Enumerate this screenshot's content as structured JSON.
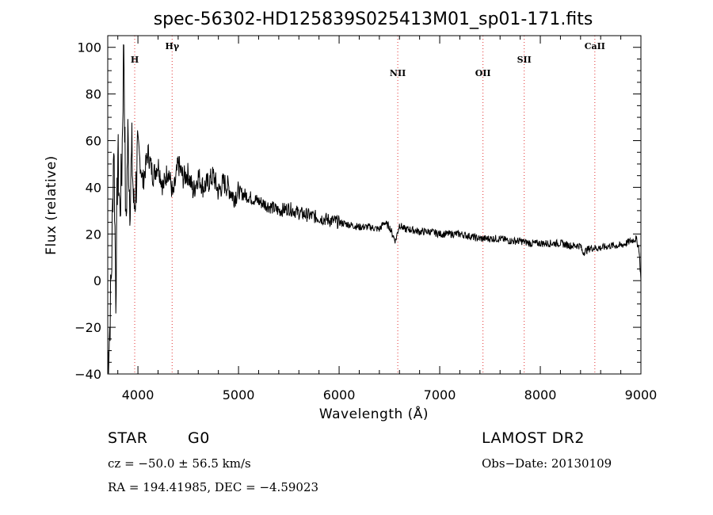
{
  "chart_data": {
    "type": "line",
    "title": "spec-56302-HD125839S025413M01_sp01-171.fits",
    "xlabel": "Wavelength (Å)",
    "ylabel": "Flux (relative)",
    "xlim": [
      3700,
      9000
    ],
    "ylim": [
      -40,
      105
    ],
    "x_ticks": [
      4000,
      5000,
      6000,
      7000,
      8000,
      9000
    ],
    "y_ticks": [
      -40,
      -20,
      0,
      20,
      40,
      60,
      80,
      100
    ],
    "grid": false,
    "series": [
      {
        "x": [
          3700,
          3720,
          3740,
          3760,
          3780,
          3800,
          3820,
          3840,
          3860,
          3880,
          3900,
          3920,
          3940,
          3960,
          3980,
          4000,
          4050,
          4100,
          4150,
          4200,
          4250,
          4300,
          4350,
          4400,
          4450,
          4500,
          4550,
          4600,
          4650,
          4700,
          4750,
          4800,
          4850,
          4900,
          4950,
          5000,
          5100,
          5200,
          5300,
          5400,
          5500,
          5600,
          5700,
          5800,
          5900,
          6000,
          6100,
          6200,
          6300,
          6400,
          6450,
          6500,
          6560,
          6600,
          6650,
          6700,
          6800,
          6900,
          7000,
          7100,
          7200,
          7300,
          7400,
          7500,
          7600,
          7700,
          7800,
          7900,
          8000,
          8100,
          8200,
          8300,
          8400,
          8420,
          8500,
          8600,
          8700,
          8800,
          8900,
          8950,
          8980,
          9000
        ],
        "y": [
          -35,
          -20,
          10,
          62,
          -5,
          55,
          30,
          48,
          105,
          20,
          62,
          35,
          55,
          30,
          40,
          58,
          42,
          55,
          45,
          50,
          40,
          48,
          36,
          50,
          44,
          46,
          38,
          45,
          40,
          42,
          45,
          38,
          42,
          40,
          36,
          38,
          36,
          34,
          32,
          30,
          31,
          29,
          28,
          27,
          26,
          25,
          24,
          23,
          23,
          22,
          25,
          23,
          17,
          24,
          22,
          22,
          21,
          21,
          20,
          20,
          20,
          19,
          18,
          18,
          18,
          17,
          17,
          16,
          16,
          16,
          16,
          15,
          15,
          12,
          14,
          14,
          15,
          15,
          17,
          18,
          14,
          0
        ]
      }
    ],
    "lines": [
      {
        "label": "H",
        "x": 3968
      },
      {
        "label": "Hγ",
        "x": 4340
      },
      {
        "label": "NII",
        "x": 6583
      },
      {
        "label": "OII",
        "x": 7430
      },
      {
        "label": "SII",
        "x": 7840
      },
      {
        "label": "CaII",
        "x": 8542
      }
    ],
    "line_color": "#e23030"
  },
  "info": {
    "class_label": "STAR",
    "subclass": "G0",
    "survey": "LAMOST DR2",
    "cz": "cz = −50.0 ± 56.5 km/s",
    "obs_date": "Obs−Date: 20130109",
    "radec": "RA = 194.41985, DEC =  −4.59023"
  }
}
